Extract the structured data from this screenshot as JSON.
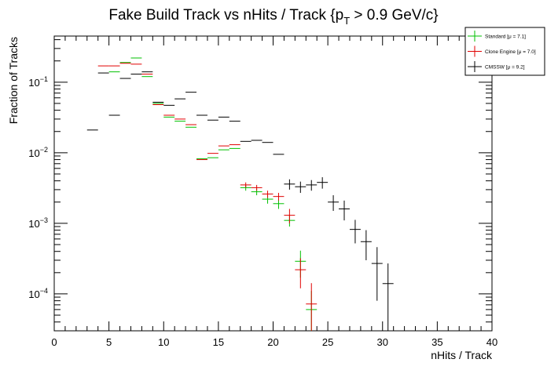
{
  "chart_data": {
    "type": "scatter",
    "title": {
      "main": "Fake Build Track vs nHits / Track {p",
      "sub": "T",
      "tail": " > 0.9 GeV/c}"
    },
    "xlabel": "nHits / Track",
    "ylabel": "Fraction of Tracks",
    "xlim": [
      0,
      40
    ],
    "ylim": [
      3e-05,
      0.45
    ],
    "yscale": "log",
    "grid": false,
    "legend_position": "top-right",
    "x_ticks": [
      0,
      5,
      10,
      15,
      20,
      25,
      30,
      35,
      40
    ],
    "y_ticks": [
      {
        "value": 0.0001,
        "base": "10",
        "exp": "−4"
      },
      {
        "value": 0.001,
        "base": "10",
        "exp": "−3"
      },
      {
        "value": 0.01,
        "base": "10",
        "exp": "−2"
      },
      {
        "value": 0.1,
        "base": "10",
        "exp": "−1"
      }
    ],
    "series": [
      {
        "name": "Standard",
        "legend_label": "Standard  [μ =  7.1]",
        "color": "#00c000",
        "points": [
          {
            "x": 5.5,
            "y": 0.14
          },
          {
            "x": 6.5,
            "y": 0.19
          },
          {
            "x": 7.5,
            "y": 0.22
          },
          {
            "x": 8.5,
            "y": 0.12
          },
          {
            "x": 9.5,
            "y": 0.05
          },
          {
            "x": 10.5,
            "y": 0.032
          },
          {
            "x": 11.5,
            "y": 0.028
          },
          {
            "x": 12.5,
            "y": 0.023
          },
          {
            "x": 13.5,
            "y": 0.0082
          },
          {
            "x": 14.5,
            "y": 0.0085
          },
          {
            "x": 15.5,
            "y": 0.011
          },
          {
            "x": 16.5,
            "y": 0.0115
          },
          {
            "x": 17.5,
            "y": 0.0032,
            "yerr": 0.0003
          },
          {
            "x": 18.5,
            "y": 0.0028,
            "yerr": 0.0003
          },
          {
            "x": 19.5,
            "y": 0.0022,
            "yerr": 0.0003
          },
          {
            "x": 20.5,
            "y": 0.0019,
            "yerr": 0.0003
          },
          {
            "x": 21.5,
            "y": 0.0011,
            "yerr": 0.0002
          },
          {
            "x": 22.5,
            "y": 0.00029,
            "yerr": 0.00012
          },
          {
            "x": 23.5,
            "y": 6e-05,
            "yerr": 5e-05
          }
        ]
      },
      {
        "name": "Clone Engine",
        "legend_label": "Clone Engine  [μ =  7.0]",
        "color": "#e00000",
        "points": [
          {
            "x": 4.5,
            "y": 0.17
          },
          {
            "x": 5.5,
            "y": 0.17
          },
          {
            "x": 6.5,
            "y": 0.185
          },
          {
            "x": 7.5,
            "y": 0.18
          },
          {
            "x": 8.5,
            "y": 0.13
          },
          {
            "x": 9.5,
            "y": 0.048
          },
          {
            "x": 10.5,
            "y": 0.034
          },
          {
            "x": 11.5,
            "y": 0.03
          },
          {
            "x": 12.5,
            "y": 0.025
          },
          {
            "x": 13.5,
            "y": 0.008
          },
          {
            "x": 14.5,
            "y": 0.0098
          },
          {
            "x": 15.5,
            "y": 0.0125
          },
          {
            "x": 16.5,
            "y": 0.013
          },
          {
            "x": 17.5,
            "y": 0.0035,
            "yerr": 0.0003
          },
          {
            "x": 18.5,
            "y": 0.0032,
            "yerr": 0.0003
          },
          {
            "x": 19.5,
            "y": 0.0026,
            "yerr": 0.0003
          },
          {
            "x": 20.5,
            "y": 0.0024,
            "yerr": 0.0003
          },
          {
            "x": 21.5,
            "y": 0.0013,
            "yerr": 0.0003
          },
          {
            "x": 22.5,
            "y": 0.00022,
            "yerr": 0.0001
          },
          {
            "x": 23.5,
            "y": 7.2e-05,
            "yerr": 7e-05
          }
        ]
      },
      {
        "name": "CMSSW",
        "legend_label": "CMSSW  [μ =  9.2]",
        "color": "#000000",
        "points": [
          {
            "x": 3.5,
            "y": 0.021
          },
          {
            "x": 4.5,
            "y": 0.135
          },
          {
            "x": 5.5,
            "y": 0.034
          },
          {
            "x": 6.5,
            "y": 0.113
          },
          {
            "x": 7.5,
            "y": 0.13
          },
          {
            "x": 8.5,
            "y": 0.14
          },
          {
            "x": 9.5,
            "y": 0.052
          },
          {
            "x": 10.5,
            "y": 0.047
          },
          {
            "x": 11.5,
            "y": 0.058
          },
          {
            "x": 12.5,
            "y": 0.072
          },
          {
            "x": 13.5,
            "y": 0.034
          },
          {
            "x": 14.5,
            "y": 0.029
          },
          {
            "x": 15.5,
            "y": 0.032
          },
          {
            "x": 16.5,
            "y": 0.028
          },
          {
            "x": 17.5,
            "y": 0.0145
          },
          {
            "x": 18.5,
            "y": 0.015
          },
          {
            "x": 19.5,
            "y": 0.014
          },
          {
            "x": 20.5,
            "y": 0.0095
          },
          {
            "x": 21.5,
            "y": 0.0036,
            "yerr": 0.0006
          },
          {
            "x": 22.5,
            "y": 0.0033,
            "yerr": 0.0006
          },
          {
            "x": 23.5,
            "y": 0.0035,
            "yerr": 0.0006
          },
          {
            "x": 24.5,
            "y": 0.0038,
            "yerr": 0.0007
          },
          {
            "x": 25.5,
            "y": 0.002,
            "yerr": 0.0005
          },
          {
            "x": 26.5,
            "y": 0.0016,
            "yerr": 0.0005
          },
          {
            "x": 27.5,
            "y": 0.00082,
            "yerr": 0.0003
          },
          {
            "x": 28.5,
            "y": 0.00055,
            "yerr": 0.00025
          },
          {
            "x": 29.5,
            "y": 0.00027,
            "yerr": 0.00019
          },
          {
            "x": 30.5,
            "y": 0.00014,
            "yerr": 0.00013
          }
        ]
      }
    ]
  }
}
